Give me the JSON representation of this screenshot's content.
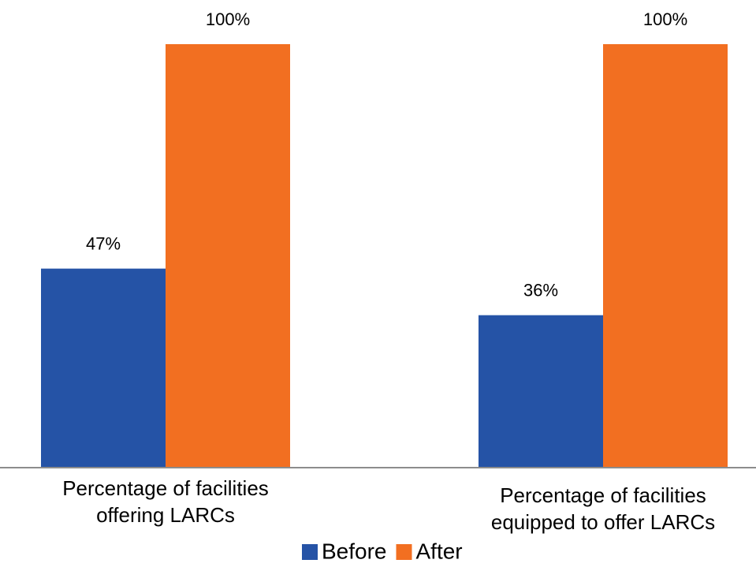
{
  "chart_data": {
    "type": "bar",
    "categories": [
      "Percentage of facilities offering LARCs",
      "Percentage of facilities equipped to offer LARCs"
    ],
    "series": [
      {
        "name": "Before",
        "color": "#2553a6",
        "values": [
          47,
          36
        ],
        "value_labels": [
          "47%",
          "36%"
        ]
      },
      {
        "name": "After",
        "color": "#f26f21",
        "values": [
          100,
          100
        ],
        "value_labels": [
          "100%",
          "100%"
        ]
      }
    ],
    "ylim": [
      0,
      100
    ],
    "legend": "bottom"
  }
}
